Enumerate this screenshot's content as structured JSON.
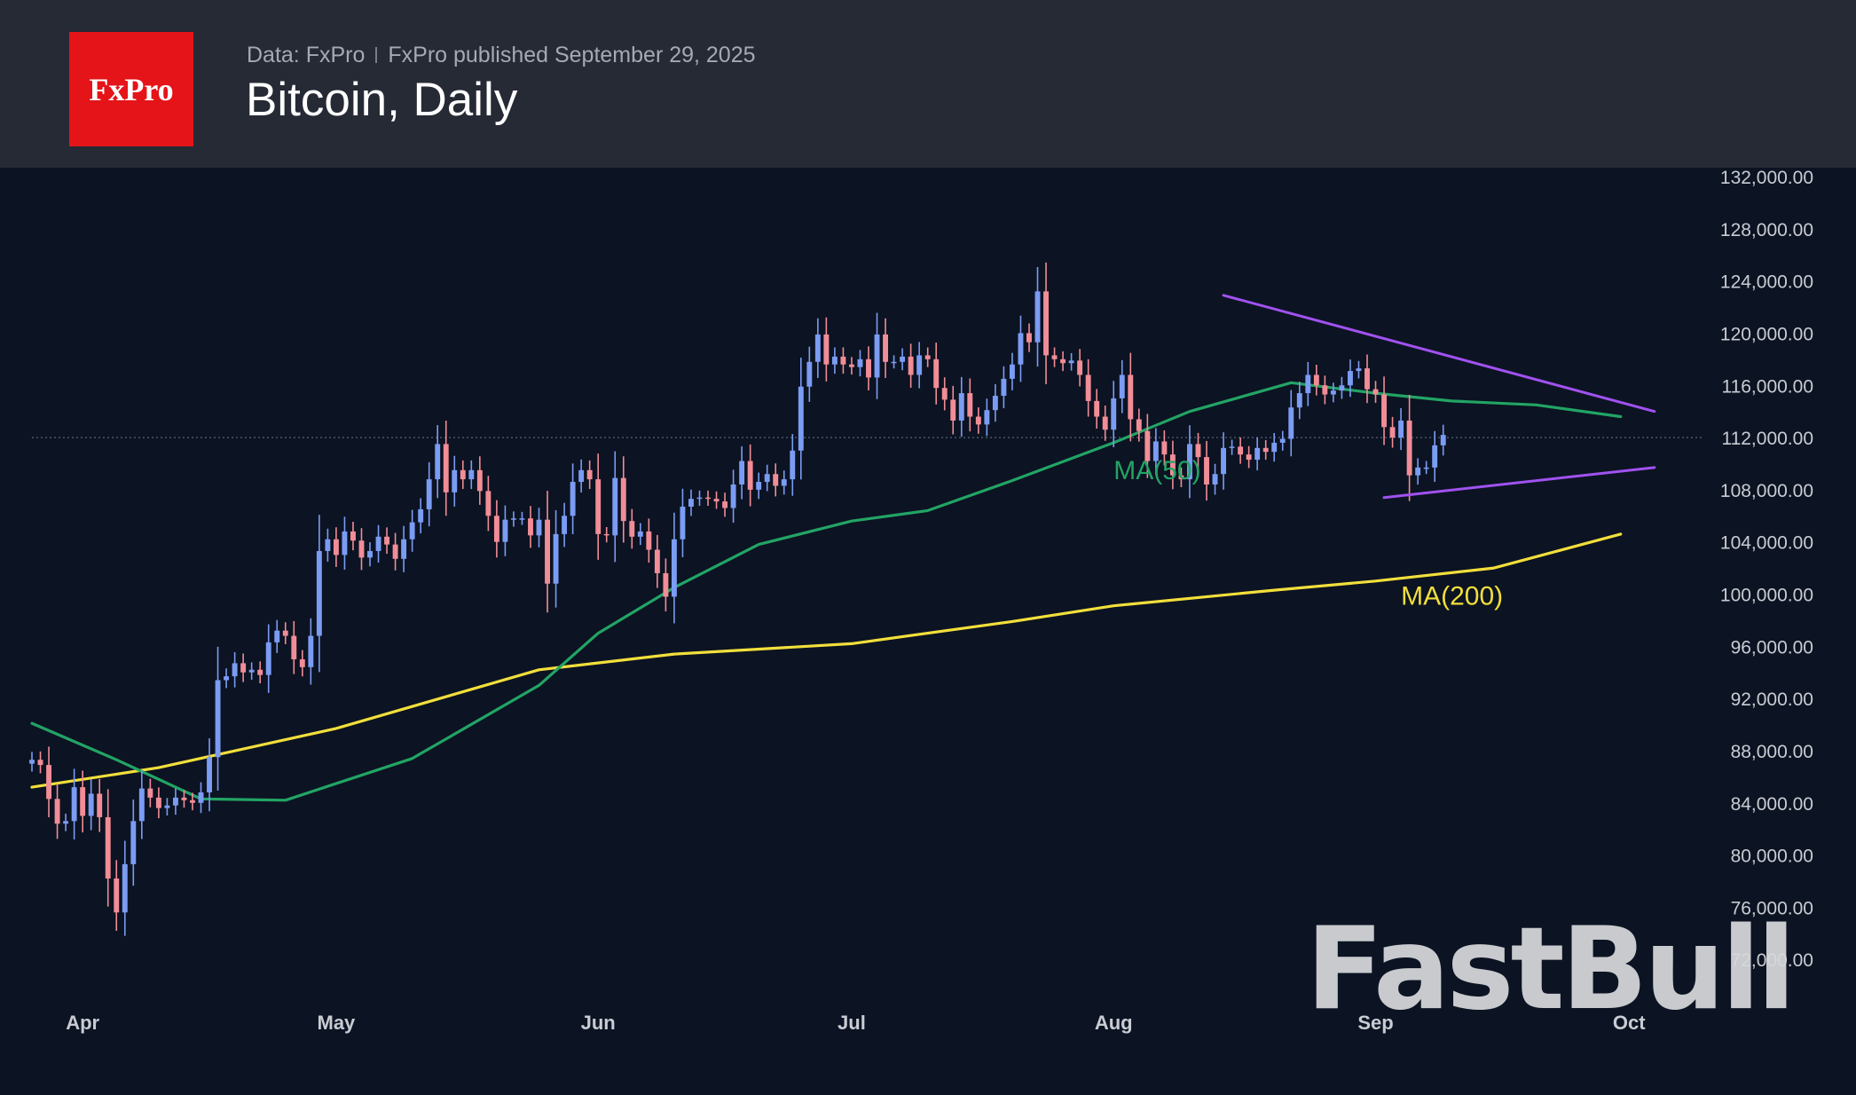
{
  "header": {
    "logo_text": "FxPro",
    "source": "Data: FxPro",
    "published": "FxPro published September 29, 2025",
    "title": "Bitcoin, Daily"
  },
  "watermark": "FastBull",
  "colors": {
    "background": "#0c1322",
    "header": "#262a35",
    "logo": "#e41419",
    "up_candle": "#7b9cf3",
    "down_candle": "#f18d97",
    "ma50": "#22a465",
    "ma200": "#f2df3b",
    "trendline": "#a052f0"
  },
  "chart_data": {
    "type": "candlestick",
    "instrument": "Bitcoin",
    "timeframe": "Daily",
    "x_range": [
      "2025-03-26",
      "2025-10-10"
    ],
    "ylim": [
      68000,
      132000
    ],
    "y_ticks": [
      "132,000.00",
      "128,000.00",
      "124,000.00",
      "120,000.00",
      "116,000.00",
      "112,000.00",
      "108,000.00",
      "104,000.00",
      "100,000.00",
      "96,000.00",
      "92,000.00",
      "88,000.00",
      "84,000.00",
      "80,000.00",
      "76,000.00",
      "72,000.00"
    ],
    "y_tick_values": [
      132000,
      128000,
      124000,
      120000,
      116000,
      112000,
      108000,
      104000,
      100000,
      96000,
      92000,
      88000,
      84000,
      80000,
      76000,
      72000
    ],
    "x_ticks": [
      {
        "label": "Apr",
        "date": "2025-04-01"
      },
      {
        "label": "May",
        "date": "2025-05-01"
      },
      {
        "label": "Jun",
        "date": "2025-06-01"
      },
      {
        "label": "Jul",
        "date": "2025-07-01"
      },
      {
        "label": "Aug",
        "date": "2025-08-01"
      },
      {
        "label": "Sep",
        "date": "2025-09-01"
      },
      {
        "label": "Oct",
        "date": "2025-10-01"
      }
    ],
    "current_price": 112000,
    "start_date": "2025-03-26",
    "closes": [
      87300,
      86900,
      84300,
      82400,
      82600,
      85200,
      83000,
      84700,
      82900,
      78200,
      75600,
      79300,
      82600,
      85100,
      84400,
      83600,
      83800,
      84400,
      84200,
      84000,
      84800,
      87500,
      93400,
      93700,
      94700,
      94000,
      94200,
      93800,
      96300,
      97200,
      96800,
      95000,
      94400,
      96800,
      103300,
      104200,
      103000,
      104800,
      104100,
      102800,
      103300,
      104400,
      103800,
      102700,
      104200,
      105500,
      106500,
      108800,
      111500,
      107800,
      109500,
      108800,
      109500,
      107900,
      106000,
      104000,
      105700,
      105800,
      105800,
      104500,
      105700,
      100800,
      104600,
      106000,
      108600,
      109500,
      108800,
      104600,
      104500,
      108900,
      105600,
      104400,
      104800,
      103400,
      101600,
      99800,
      104200,
      106700,
      107300,
      107400,
      107300,
      107100,
      106600,
      108400,
      110200,
      108000,
      108600,
      109200,
      108300,
      108800,
      111000,
      115900,
      117800,
      119900,
      117600,
      118200,
      117600,
      117400,
      118000,
      116600,
      119900,
      117800,
      117800,
      118200,
      116800,
      118300,
      118000,
      115800,
      114900,
      113300,
      115400,
      113600,
      113000,
      114100,
      115200,
      116500,
      117600,
      120000,
      119300,
      123200,
      118300,
      118000,
      117700,
      117900,
      116800,
      114800,
      113600,
      112600,
      115000,
      116800,
      113400,
      112500,
      110200,
      111700,
      110700,
      109100,
      108800,
      111500,
      110500,
      108400,
      109200,
      111200,
      111300,
      110700,
      110300,
      111200,
      110900,
      111600,
      111900,
      114300,
      115400,
      116800,
      116000,
      115300,
      115600,
      116000,
      117100,
      117300,
      115700,
      115300,
      112800,
      112000,
      113300,
      109100,
      109700,
      109700,
      111400,
      112200
    ],
    "ma50_series": [
      {
        "date": "2025-03-26",
        "value": 90100
      },
      {
        "date": "2025-04-05",
        "value": 87300
      },
      {
        "date": "2025-04-15",
        "value": 84300
      },
      {
        "date": "2025-04-25",
        "value": 84200
      },
      {
        "date": "2025-05-10",
        "value": 87400
      },
      {
        "date": "2025-05-25",
        "value": 93000
      },
      {
        "date": "2025-06-01",
        "value": 97000
      },
      {
        "date": "2025-06-10",
        "value": 100500
      },
      {
        "date": "2025-06-20",
        "value": 103800
      },
      {
        "date": "2025-07-01",
        "value": 105600
      },
      {
        "date": "2025-07-10",
        "value": 106400
      },
      {
        "date": "2025-07-20",
        "value": 108700
      },
      {
        "date": "2025-08-01",
        "value": 111600
      },
      {
        "date": "2025-08-10",
        "value": 114000
      },
      {
        "date": "2025-08-22",
        "value": 116200
      },
      {
        "date": "2025-09-01",
        "value": 115400
      },
      {
        "date": "2025-09-10",
        "value": 114800
      },
      {
        "date": "2025-09-20",
        "value": 114500
      },
      {
        "date": "2025-09-30",
        "value": 113600
      }
    ],
    "ma200_series": [
      {
        "date": "2025-03-26",
        "value": 85200
      },
      {
        "date": "2025-04-10",
        "value": 86700
      },
      {
        "date": "2025-05-01",
        "value": 89700
      },
      {
        "date": "2025-05-25",
        "value": 94200
      },
      {
        "date": "2025-06-10",
        "value": 95400
      },
      {
        "date": "2025-07-01",
        "value": 96200
      },
      {
        "date": "2025-07-20",
        "value": 97900
      },
      {
        "date": "2025-08-01",
        "value": 99100
      },
      {
        "date": "2025-08-20",
        "value": 100300
      },
      {
        "date": "2025-09-01",
        "value": 101000
      },
      {
        "date": "2025-09-15",
        "value": 102000
      },
      {
        "date": "2025-09-30",
        "value": 104600
      }
    ],
    "trendlines": [
      {
        "from": {
          "date": "2025-08-14",
          "value": 122900
        },
        "to": {
          "date": "2025-10-04",
          "value": 114000
        }
      },
      {
        "from": {
          "date": "2025-09-02",
          "value": 107400
        },
        "to": {
          "date": "2025-10-04",
          "value": 109700
        }
      }
    ],
    "annotations": [
      {
        "text": "MA(50)",
        "date": "2025-08-01",
        "value": 108800
      },
      {
        "text": "MA(200)",
        "date": "2025-09-04",
        "value": 99200
      }
    ]
  }
}
